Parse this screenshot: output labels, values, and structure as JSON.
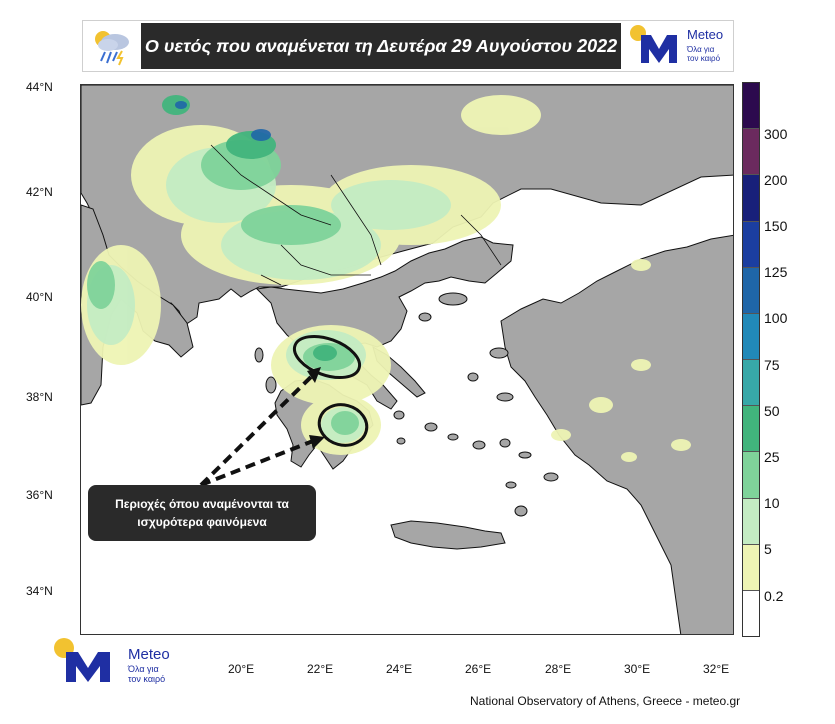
{
  "header": {
    "title": "Ο υετός που αναμένεται τη Δευτέρα 29 Αυγούστου 2022"
  },
  "logo": {
    "word": "Meteo",
    "tagline_1": "Όλα για",
    "tagline_2": "τον καιρό"
  },
  "map": {
    "lat_labels": [
      "44°N",
      "42°N",
      "40°N",
      "38°N",
      "36°N",
      "34°N"
    ],
    "lon_labels": [
      "20°E",
      "22°E",
      "24°E",
      "26°E",
      "28°E",
      "30°E",
      "32°E"
    ]
  },
  "colorbar": {
    "labels": [
      "300",
      "200",
      "150",
      "125",
      "100",
      "75",
      "50",
      "25",
      "10",
      "5",
      "0.2"
    ],
    "colors": [
      "#2c0a4e",
      "#6b2a5e",
      "#18207a",
      "#1b3ea0",
      "#1f66a8",
      "#2189b8",
      "#37a8a8",
      "#41b47c",
      "#7fd39a",
      "#c4ecc3",
      "#eef4b4",
      "#ffffff"
    ]
  },
  "annotation": {
    "text_1": "Περιοχές όπου αναμένονται τα",
    "text_2": "ισχυρότερα φαινόμενα"
  },
  "credit": "National Observatory of Athens, Greece - meteo.gr"
}
